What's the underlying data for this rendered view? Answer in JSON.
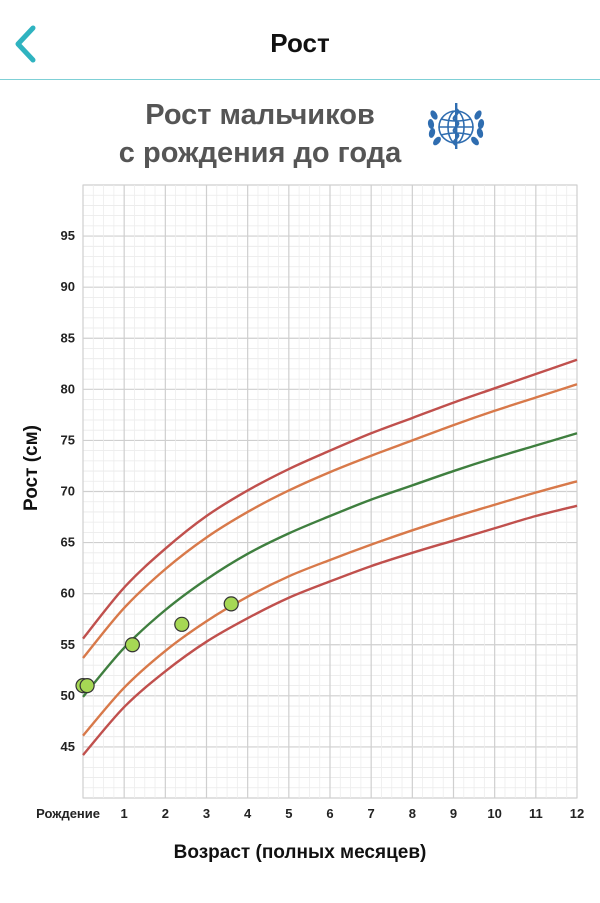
{
  "header": {
    "title": "Рост",
    "back_icon": "chevron-left-icon",
    "accent_color": "#2fb3c0"
  },
  "logo": {
    "name": "who-emblem-icon",
    "color": "#2f6db0"
  },
  "chart_data": {
    "type": "line",
    "title": "Рост мальчиков\nс рождения до года",
    "title_line1": "Рост мальчиков",
    "title_line2": "с рождения до года",
    "xlabel": "Возраст (полных месяцев)",
    "ylabel": "Рост (см)",
    "xlim": [
      0,
      12
    ],
    "ylim": [
      40,
      100
    ],
    "x_ticks": [
      0,
      1,
      2,
      3,
      4,
      5,
      6,
      7,
      8,
      9,
      10,
      11,
      12
    ],
    "x_tick_labels": [
      "Рождение",
      "1",
      "2",
      "3",
      "4",
      "5",
      "6",
      "7",
      "8",
      "9",
      "10",
      "11",
      "12"
    ],
    "y_ticks": [
      45,
      50,
      55,
      60,
      65,
      70,
      75,
      80,
      85,
      90,
      95
    ],
    "y_tick_labels": [
      "45",
      "50",
      "55",
      "60",
      65,
      "70",
      "75",
      "80",
      "85",
      "90",
      "95"
    ],
    "grid": true,
    "legend": "none",
    "x": [
      0,
      1,
      2,
      3,
      4,
      5,
      6,
      7,
      8,
      9,
      10,
      11,
      12
    ],
    "series": [
      {
        "role": "upper-outer",
        "color": "#c0504d",
        "values": [
          55.6,
          60.6,
          64.4,
          67.6,
          70.1,
          72.2,
          74.0,
          75.7,
          77.2,
          78.7,
          80.1,
          81.5,
          82.9
        ]
      },
      {
        "role": "upper-inner",
        "color": "#d8794a",
        "values": [
          53.7,
          58.6,
          62.4,
          65.5,
          68.0,
          70.1,
          71.9,
          73.5,
          75.0,
          76.5,
          77.9,
          79.2,
          80.5
        ]
      },
      {
        "role": "median",
        "color": "#3f7f3f",
        "values": [
          49.9,
          54.7,
          58.4,
          61.4,
          63.9,
          65.9,
          67.6,
          69.2,
          70.6,
          72.0,
          73.3,
          74.5,
          75.7
        ]
      },
      {
        "role": "lower-inner",
        "color": "#d8794a",
        "values": [
          46.1,
          50.8,
          54.4,
          57.3,
          59.7,
          61.7,
          63.3,
          64.8,
          66.2,
          67.5,
          68.7,
          69.9,
          71.0
        ]
      },
      {
        "role": "lower-outer",
        "color": "#c0504d",
        "values": [
          44.2,
          48.9,
          52.4,
          55.3,
          57.6,
          59.6,
          61.2,
          62.7,
          64.0,
          65.2,
          66.4,
          67.6,
          68.6
        ]
      }
    ],
    "measurements": {
      "color": "#a6d854",
      "points": [
        {
          "x": 0.0,
          "y": 51
        },
        {
          "x": 0.1,
          "y": 51
        },
        {
          "x": 1.2,
          "y": 55
        },
        {
          "x": 2.4,
          "y": 57
        },
        {
          "x": 3.6,
          "y": 59
        }
      ]
    }
  }
}
